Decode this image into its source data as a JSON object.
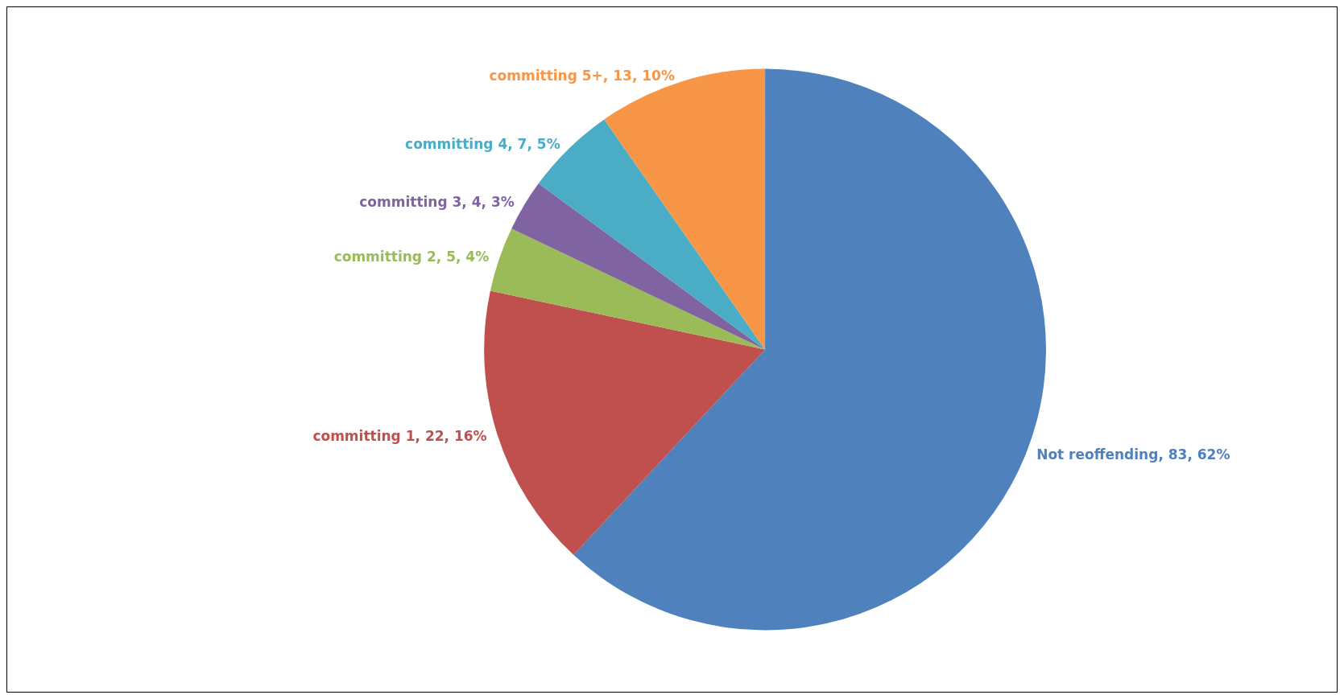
{
  "chart_data": {
    "type": "pie",
    "categories": [
      "Not reoffending",
      "committing 1",
      "committing 2",
      "committing 3",
      "committing 4",
      "committing 5+"
    ],
    "values": [
      83,
      22,
      5,
      4,
      7,
      13
    ],
    "value_labels": [
      "83, 62%",
      "22, 16%",
      "5, 4%",
      "4, 3%",
      "7, 5%",
      "13, 10%"
    ],
    "colors": [
      "#4f81bd",
      "#c0504d",
      "#9bbb59",
      "#8064a2",
      "#4bacc6",
      "#f79646"
    ],
    "legend": false
  }
}
